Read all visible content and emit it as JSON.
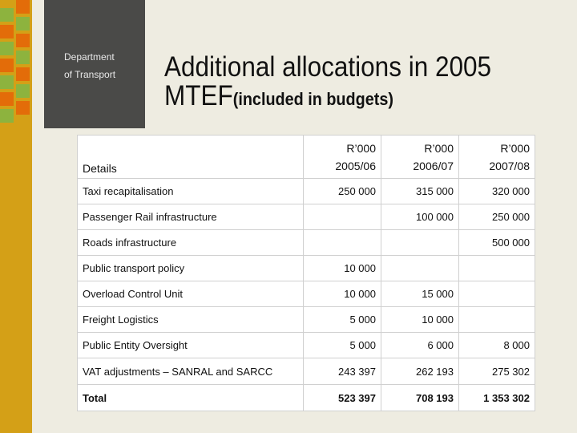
{
  "department": {
    "line1": "Department",
    "line2": "of Transport"
  },
  "title": {
    "main": "Additional allocations in 2005 MTEF",
    "sub": "(included in budgets)"
  },
  "table": {
    "corner_label": "Details",
    "columns": [
      {
        "unit": "R’000",
        "year": "2005/06"
      },
      {
        "unit": "R’000",
        "year": "2006/07"
      },
      {
        "unit": "R’000",
        "year": "2007/08"
      }
    ],
    "rows": [
      {
        "label": "Taxi recapitalisation",
        "values": [
          "250 000",
          "315 000",
          "320 000"
        ]
      },
      {
        "label": "Passenger Rail infrastructure",
        "values": [
          "",
          "100 000",
          "250 000"
        ]
      },
      {
        "label": "Roads infrastructure",
        "values": [
          "",
          "",
          "500 000"
        ]
      },
      {
        "label": "Public transport policy",
        "values": [
          "10 000",
          "",
          ""
        ]
      },
      {
        "label": "Overload Control Unit",
        "values": [
          "10 000",
          "15 000",
          ""
        ]
      },
      {
        "label": "Freight Logistics",
        "values": [
          "5 000",
          "10 000",
          ""
        ]
      },
      {
        "label": "Public Entity Oversight",
        "values": [
          "5 000",
          "6 000",
          "8 000"
        ]
      },
      {
        "label": "VAT adjustments – SANRAL and SARCC",
        "values": [
          "243 397",
          "262 193",
          "275 302"
        ]
      }
    ],
    "total": {
      "label": "Total",
      "values": [
        "523 397",
        "708 193",
        "1 353 302"
      ]
    }
  }
}
